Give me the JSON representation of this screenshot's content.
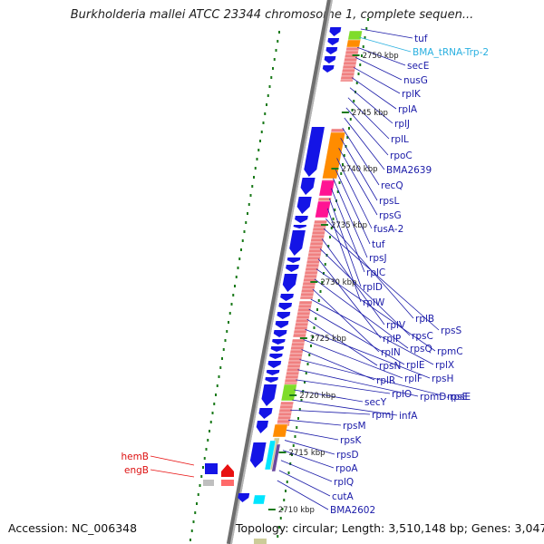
{
  "title": "Burkholderia mallei ATCC 23344 chromosome 1, complete sequen...",
  "footer": {
    "accession": "Accession: NC_006348",
    "topology": "Topology: circular; Length: 3,510,148 bp; Genes: 3,047"
  },
  "colors": {
    "gene_label": "#1a1aa8",
    "trna_label": "#2ab0e0",
    "highlight_label": "#dd1111",
    "cds": "#1414e6",
    "rna_track": "#f08080",
    "orange": "#ff8c00",
    "magenta": "#ff1493",
    "lime": "#7fdc2a",
    "cyan": "#00e5ff",
    "tick": "#1a7a1a",
    "backbone": "#8c8c8c"
  },
  "scale": [
    {
      "label": "2750 kbp"
    },
    {
      "label": "2745 kbp"
    },
    {
      "label": "2740 kbp"
    },
    {
      "label": "2735 kbp"
    },
    {
      "label": "2730 kbp"
    },
    {
      "label": "2725 kbp"
    },
    {
      "label": "2720 kbp"
    },
    {
      "label": "2715 kbp"
    },
    {
      "label": "2710 kbp"
    }
  ],
  "genes": [
    {
      "label": "tuf",
      "type": "cds"
    },
    {
      "label": "BMA_tRNA-Trp-2",
      "type": "trna"
    },
    {
      "label": "secE",
      "type": "cds"
    },
    {
      "label": "nusG",
      "type": "cds"
    },
    {
      "label": "rplK",
      "type": "cds"
    },
    {
      "label": "rplA",
      "type": "cds"
    },
    {
      "label": "rplJ",
      "type": "cds"
    },
    {
      "label": "rplL",
      "type": "cds"
    },
    {
      "label": "rpoC",
      "type": "cds"
    },
    {
      "label": "BMA2639",
      "type": "cds"
    },
    {
      "label": "recQ",
      "type": "cds"
    },
    {
      "label": "rpsL",
      "type": "cds"
    },
    {
      "label": "rpsG",
      "type": "cds"
    },
    {
      "label": "fusA-2",
      "type": "cds"
    },
    {
      "label": "tuf",
      "type": "cds"
    },
    {
      "label": "rpsJ",
      "type": "cds"
    },
    {
      "label": "rplC",
      "type": "cds"
    },
    {
      "label": "rplD",
      "type": "cds"
    },
    {
      "label": "rplW",
      "type": "cds"
    },
    {
      "label": "rplB",
      "type": "cds"
    },
    {
      "label": "rpsS",
      "type": "cds"
    },
    {
      "label": "rplV",
      "type": "cds"
    },
    {
      "label": "rpsC",
      "type": "cds"
    },
    {
      "label": "rplP",
      "type": "cds"
    },
    {
      "label": "rpmC",
      "type": "cds"
    },
    {
      "label": "rpsQ",
      "type": "cds"
    },
    {
      "label": "rplN",
      "type": "cds"
    },
    {
      "label": "rplX",
      "type": "cds"
    },
    {
      "label": "rplE",
      "type": "cds"
    },
    {
      "label": "rpsN",
      "type": "cds"
    },
    {
      "label": "rpsH",
      "type": "cds"
    },
    {
      "label": "rplF",
      "type": "cds"
    },
    {
      "label": "rplR",
      "type": "cds"
    },
    {
      "label": "rpsE",
      "type": "cds"
    },
    {
      "label": "rpmD-rpsE",
      "type": "cds"
    },
    {
      "label": "rplO",
      "type": "cds"
    },
    {
      "label": "secY",
      "type": "cds"
    },
    {
      "label": "infA",
      "type": "cds"
    },
    {
      "label": "rpmJ",
      "type": "cds"
    },
    {
      "label": "rpsM",
      "type": "cds"
    },
    {
      "label": "rpsK",
      "type": "cds"
    },
    {
      "label": "rpsD",
      "type": "cds"
    },
    {
      "label": "rpoA",
      "type": "cds"
    },
    {
      "label": "rplQ",
      "type": "cds"
    },
    {
      "label": "cutA",
      "type": "cds"
    },
    {
      "label": "BMA2602",
      "type": "cds"
    },
    {
      "label": "hemB",
      "type": "highlight"
    },
    {
      "label": "engB",
      "type": "highlight"
    }
  ]
}
